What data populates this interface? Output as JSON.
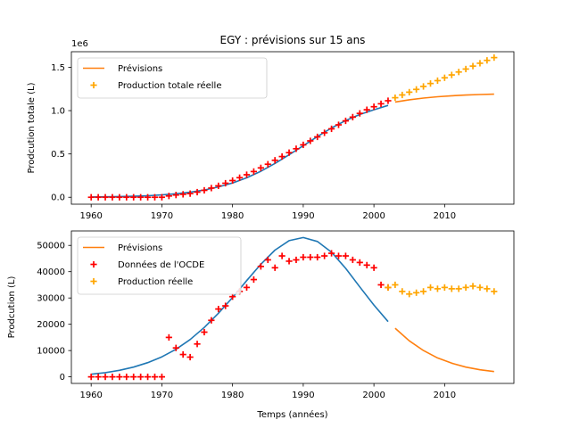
{
  "title": "EGY : prévisions sur 15 ans",
  "colors": {
    "forecast_fit": "#1f77b4",
    "forecast": "#ff7f0e",
    "oecd": "#ff0000",
    "actual": "#ffa500"
  },
  "chart_data": [
    {
      "type": "line",
      "xlabel": "",
      "ylabel": "Prodcution totale (L)",
      "y_offset_label": "1e6",
      "xlim": [
        1957.2,
        2019.8
      ],
      "ylim": [
        -80000,
        1680000
      ],
      "x_ticks": [
        1960,
        1970,
        1980,
        1990,
        2000,
        2010
      ],
      "x_tick_labels": [
        "1960",
        "1970",
        "1980",
        "1990",
        "2000",
        "2010"
      ],
      "y_ticks": [
        0,
        500000,
        1000000,
        1500000
      ],
      "y_tick_labels": [
        "0.0",
        "0.5",
        "1.0",
        "1.5"
      ],
      "legend_position": "upper-left",
      "legend": [
        {
          "label": "Prévisions",
          "marker": "line",
          "color": "#ff7f0e"
        },
        {
          "label": "Production totale réelle",
          "marker": "plus",
          "color": "#ffa500"
        }
      ],
      "series": [
        {
          "color": "#1f77b4",
          "style": "line",
          "x": [
            1960,
            1962,
            1964,
            1966,
            1968,
            1970,
            1972,
            1974,
            1976,
            1978,
            1980,
            1982,
            1984,
            1986,
            1988,
            1990,
            1992,
            1994,
            1996,
            1998,
            2000,
            2002
          ],
          "y": [
            3000,
            5000,
            8000,
            12000,
            18000,
            27000,
            40000,
            58000,
            84000,
            120000,
            165000,
            225000,
            300000,
            390000,
            490000,
            595000,
            700000,
            800000,
            885000,
            955000,
            1010000,
            1060000
          ]
        },
        {
          "name": "Prévisions",
          "color": "#ff7f0e",
          "style": "line",
          "x": [
            2003,
            2005,
            2007,
            2009,
            2011,
            2013,
            2015,
            2017
          ],
          "y": [
            1100000,
            1125000,
            1145000,
            1160000,
            1172000,
            1180000,
            1186000,
            1190000
          ]
        },
        {
          "color": "#ff0000",
          "style": "plus",
          "x": [
            1960,
            1961,
            1962,
            1963,
            1964,
            1965,
            1966,
            1967,
            1968,
            1969,
            1970,
            1971,
            1972,
            1973,
            1974,
            1975,
            1976,
            1977,
            1978,
            1979,
            1980,
            1981,
            1982,
            1983,
            1984,
            1985,
            1986,
            1987,
            1988,
            1989,
            1990,
            1991,
            1992,
            1993,
            1994,
            1995,
            1996,
            1997,
            1998,
            1999,
            2000,
            2001,
            2002
          ],
          "y": [
            0,
            0,
            0,
            0,
            0,
            0,
            0,
            0,
            0,
            0,
            0,
            15000,
            26000,
            34000,
            42000,
            59000,
            80000,
            106000,
            132000,
            162000,
            193000,
            226000,
            260000,
            297000,
            339000,
            381000,
            427000,
            470000,
            515000,
            560000,
            605000,
            651000,
            697000,
            744000,
            790000,
            836000,
            882000,
            925000,
            968000,
            1010000,
            1045000,
            1079000,
            1114000
          ]
        },
        {
          "name": "Production totale réelle",
          "color": "#ffa500",
          "style": "plus",
          "x": [
            2003,
            2004,
            2005,
            2006,
            2007,
            2008,
            2009,
            2010,
            2011,
            2012,
            2013,
            2014,
            2015,
            2016,
            2017
          ],
          "y": [
            1149000,
            1181000,
            1213000,
            1245000,
            1279000,
            1313000,
            1346000,
            1379000,
            1412000,
            1446000,
            1480000,
            1514000,
            1547000,
            1580000,
            1612000
          ]
        }
      ]
    },
    {
      "type": "line",
      "xlabel": "Temps (années)",
      "ylabel": "Prodcution (L)",
      "xlim": [
        1957.2,
        2019.8
      ],
      "ylim": [
        -2500,
        55500
      ],
      "x_ticks": [
        1960,
        1970,
        1980,
        1990,
        2000,
        2010
      ],
      "x_tick_labels": [
        "1960",
        "1970",
        "1980",
        "1990",
        "2000",
        "2010"
      ],
      "y_ticks": [
        0,
        10000,
        20000,
        30000,
        40000,
        50000
      ],
      "y_tick_labels": [
        "0",
        "10000",
        "20000",
        "30000",
        "40000",
        "50000"
      ],
      "legend_position": "upper-left",
      "legend": [
        {
          "label": "Prévisions",
          "marker": "line",
          "color": "#ff7f0e"
        },
        {
          "label": "Données de l'OCDE",
          "marker": "plus",
          "color": "#ff0000"
        },
        {
          "label": "Production réelle",
          "marker": "plus",
          "color": "#ffa500"
        }
      ],
      "series": [
        {
          "color": "#1f77b4",
          "style": "line",
          "x": [
            1960,
            1962,
            1964,
            1966,
            1968,
            1970,
            1972,
            1974,
            1976,
            1978,
            1980,
            1982,
            1984,
            1986,
            1988,
            1990,
            1992,
            1994,
            1996,
            1998,
            2000,
            2002
          ],
          "y": [
            1000,
            1600,
            2500,
            3700,
            5400,
            7600,
            10500,
            14200,
            18800,
            24200,
            30200,
            36600,
            42800,
            48200,
            51800,
            53000,
            51500,
            47400,
            41300,
            34200,
            27300,
            21000
          ]
        },
        {
          "name": "Prévisions",
          "color": "#ff7f0e",
          "style": "line",
          "x": [
            2003,
            2005,
            2007,
            2009,
            2011,
            2013,
            2015,
            2017
          ],
          "y": [
            18500,
            13700,
            10000,
            7200,
            5200,
            3700,
            2700,
            2000
          ]
        },
        {
          "name": "Données de l'OCDE",
          "color": "#ff0000",
          "style": "plus",
          "x": [
            1960,
            1961,
            1962,
            1963,
            1964,
            1965,
            1966,
            1967,
            1968,
            1969,
            1970,
            1971,
            1972,
            1973,
            1974,
            1975,
            1976,
            1977,
            1978,
            1979,
            1980,
            1981,
            1982,
            1983,
            1984,
            1985,
            1986,
            1987,
            1988,
            1989,
            1990,
            1991,
            1992,
            1993,
            1994,
            1995,
            1996,
            1997,
            1998,
            1999,
            2000,
            2001,
            2002
          ],
          "y": [
            0,
            0,
            0,
            0,
            0,
            0,
            0,
            0,
            0,
            0,
            0,
            15000,
            11000,
            8500,
            7500,
            12500,
            17000,
            21500,
            25800,
            27000,
            30500,
            32500,
            34000,
            37000,
            42000,
            44500,
            41500,
            46000,
            44000,
            44500,
            45500,
            45500,
            45500,
            46000,
            47000,
            46000,
            46000,
            44500,
            43500,
            42500,
            41500,
            35000,
            34000
          ]
        },
        {
          "name": "Production réelle",
          "color": "#ffa500",
          "style": "plus",
          "x": [
            2002,
            2003,
            2004,
            2005,
            2006,
            2007,
            2008,
            2009,
            2010,
            2011,
            2012,
            2013,
            2014,
            2015,
            2016,
            2017
          ],
          "y": [
            34000,
            35000,
            32500,
            31500,
            32000,
            32500,
            34000,
            33500,
            34000,
            33500,
            33500,
            34000,
            34500,
            34000,
            33500,
            32500
          ]
        }
      ]
    }
  ]
}
